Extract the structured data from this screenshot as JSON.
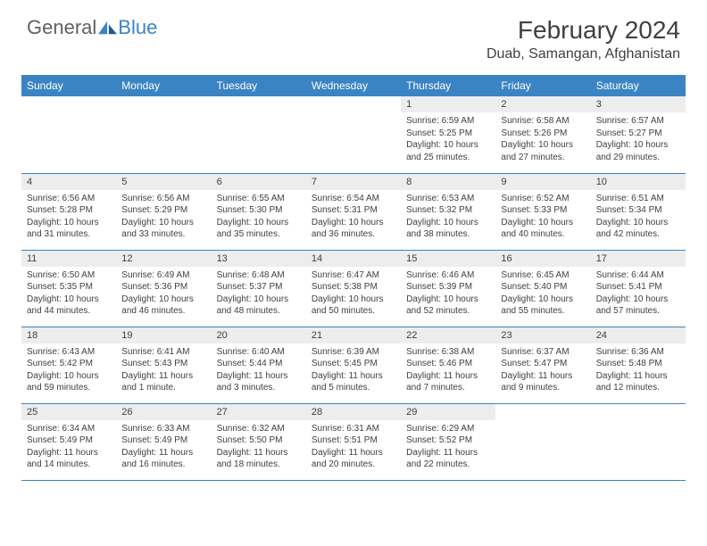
{
  "brand": {
    "general": "General",
    "blue": "Blue"
  },
  "title": "February 2024",
  "location": "Duab, Samangan, Afghanistan",
  "colors": {
    "accent": "#3b84c4",
    "header_bg": "#ededed",
    "text": "#404040",
    "row_divider": "#3b84c4",
    "background": "#ffffff"
  },
  "typography": {
    "title_fontsize": 28,
    "location_fontsize": 16,
    "weekday_fontsize": 12,
    "daynum_fontsize": 11,
    "info_fontsize": 10
  },
  "weekdays": [
    "Sunday",
    "Monday",
    "Tuesday",
    "Wednesday",
    "Thursday",
    "Friday",
    "Saturday"
  ],
  "grid": [
    [
      null,
      null,
      null,
      null,
      {
        "d": "1",
        "sunrise": "6:59 AM",
        "sunset": "5:25 PM",
        "daylight": "10 hours and 25 minutes."
      },
      {
        "d": "2",
        "sunrise": "6:58 AM",
        "sunset": "5:26 PM",
        "daylight": "10 hours and 27 minutes."
      },
      {
        "d": "3",
        "sunrise": "6:57 AM",
        "sunset": "5:27 PM",
        "daylight": "10 hours and 29 minutes."
      }
    ],
    [
      {
        "d": "4",
        "sunrise": "6:56 AM",
        "sunset": "5:28 PM",
        "daylight": "10 hours and 31 minutes."
      },
      {
        "d": "5",
        "sunrise": "6:56 AM",
        "sunset": "5:29 PM",
        "daylight": "10 hours and 33 minutes."
      },
      {
        "d": "6",
        "sunrise": "6:55 AM",
        "sunset": "5:30 PM",
        "daylight": "10 hours and 35 minutes."
      },
      {
        "d": "7",
        "sunrise": "6:54 AM",
        "sunset": "5:31 PM",
        "daylight": "10 hours and 36 minutes."
      },
      {
        "d": "8",
        "sunrise": "6:53 AM",
        "sunset": "5:32 PM",
        "daylight": "10 hours and 38 minutes."
      },
      {
        "d": "9",
        "sunrise": "6:52 AM",
        "sunset": "5:33 PM",
        "daylight": "10 hours and 40 minutes."
      },
      {
        "d": "10",
        "sunrise": "6:51 AM",
        "sunset": "5:34 PM",
        "daylight": "10 hours and 42 minutes."
      }
    ],
    [
      {
        "d": "11",
        "sunrise": "6:50 AM",
        "sunset": "5:35 PM",
        "daylight": "10 hours and 44 minutes."
      },
      {
        "d": "12",
        "sunrise": "6:49 AM",
        "sunset": "5:36 PM",
        "daylight": "10 hours and 46 minutes."
      },
      {
        "d": "13",
        "sunrise": "6:48 AM",
        "sunset": "5:37 PM",
        "daylight": "10 hours and 48 minutes."
      },
      {
        "d": "14",
        "sunrise": "6:47 AM",
        "sunset": "5:38 PM",
        "daylight": "10 hours and 50 minutes."
      },
      {
        "d": "15",
        "sunrise": "6:46 AM",
        "sunset": "5:39 PM",
        "daylight": "10 hours and 52 minutes."
      },
      {
        "d": "16",
        "sunrise": "6:45 AM",
        "sunset": "5:40 PM",
        "daylight": "10 hours and 55 minutes."
      },
      {
        "d": "17",
        "sunrise": "6:44 AM",
        "sunset": "5:41 PM",
        "daylight": "10 hours and 57 minutes."
      }
    ],
    [
      {
        "d": "18",
        "sunrise": "6:43 AM",
        "sunset": "5:42 PM",
        "daylight": "10 hours and 59 minutes."
      },
      {
        "d": "19",
        "sunrise": "6:41 AM",
        "sunset": "5:43 PM",
        "daylight": "11 hours and 1 minute."
      },
      {
        "d": "20",
        "sunrise": "6:40 AM",
        "sunset": "5:44 PM",
        "daylight": "11 hours and 3 minutes."
      },
      {
        "d": "21",
        "sunrise": "6:39 AM",
        "sunset": "5:45 PM",
        "daylight": "11 hours and 5 minutes."
      },
      {
        "d": "22",
        "sunrise": "6:38 AM",
        "sunset": "5:46 PM",
        "daylight": "11 hours and 7 minutes."
      },
      {
        "d": "23",
        "sunrise": "6:37 AM",
        "sunset": "5:47 PM",
        "daylight": "11 hours and 9 minutes."
      },
      {
        "d": "24",
        "sunrise": "6:36 AM",
        "sunset": "5:48 PM",
        "daylight": "11 hours and 12 minutes."
      }
    ],
    [
      {
        "d": "25",
        "sunrise": "6:34 AM",
        "sunset": "5:49 PM",
        "daylight": "11 hours and 14 minutes."
      },
      {
        "d": "26",
        "sunrise": "6:33 AM",
        "sunset": "5:49 PM",
        "daylight": "11 hours and 16 minutes."
      },
      {
        "d": "27",
        "sunrise": "6:32 AM",
        "sunset": "5:50 PM",
        "daylight": "11 hours and 18 minutes."
      },
      {
        "d": "28",
        "sunrise": "6:31 AM",
        "sunset": "5:51 PM",
        "daylight": "11 hours and 20 minutes."
      },
      {
        "d": "29",
        "sunrise": "6:29 AM",
        "sunset": "5:52 PM",
        "daylight": "11 hours and 22 minutes."
      },
      null,
      null
    ]
  ],
  "labels": {
    "sunrise": "Sunrise: ",
    "sunset": "Sunset: ",
    "daylight": "Daylight: "
  }
}
